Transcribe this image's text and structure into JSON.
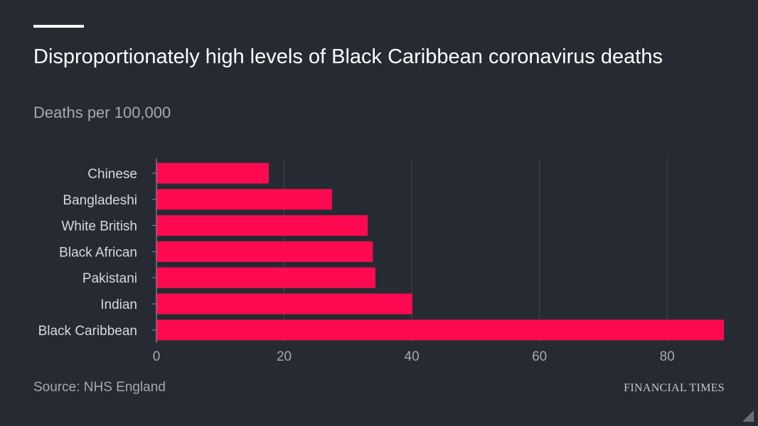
{
  "title": "Disproportionately high levels of Black Caribbean coronavirus deaths",
  "subtitle": "Deaths per 100,000",
  "source": "Source: NHS England",
  "brand": "FINANCIAL TIMES",
  "colors": {
    "background": "#262a33",
    "bar": "#ff0a50",
    "grid": "#434750",
    "axis_text": "#a7a9ae",
    "category_text": "#d8d9db"
  },
  "chart_data": {
    "type": "bar",
    "orientation": "horizontal",
    "categories": [
      "Chinese",
      "Bangladeshi",
      "White British",
      "Black African",
      "Pakistani",
      "Indian",
      "Black Caribbean"
    ],
    "values": [
      17.6,
      27.5,
      33.1,
      33.9,
      34.3,
      40.1,
      88.9
    ],
    "xlim": [
      0,
      89
    ],
    "xticks": [
      0,
      20,
      40,
      60,
      80
    ],
    "title": "Disproportionately high levels of Black Caribbean coronavirus deaths",
    "subtitle": "Deaths per 100,000",
    "grid": true
  }
}
